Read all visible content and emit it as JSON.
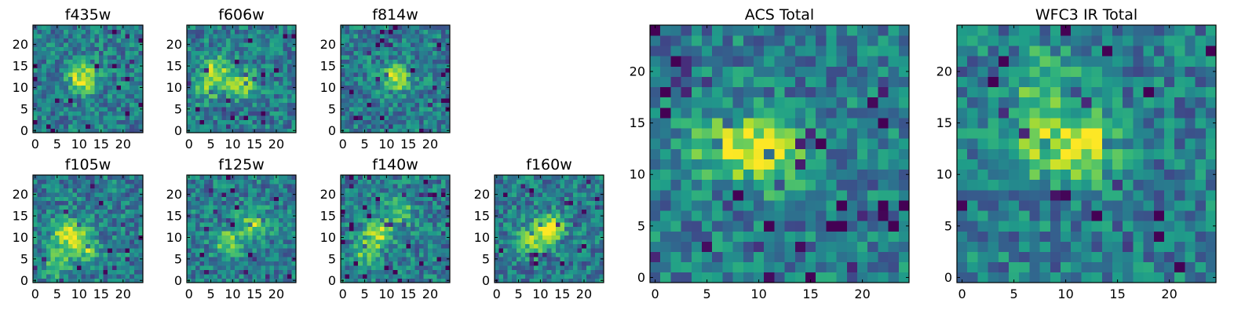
{
  "chart_data": [
    {
      "type": "heatmap",
      "title": "f435w",
      "xticks": [
        "0",
        "5",
        "10",
        "15",
        "20"
      ],
      "yticks": [
        "0",
        "5",
        "10",
        "15",
        "20"
      ],
      "xlim": [
        -0.5,
        24.5
      ],
      "ylim": [
        -0.5,
        24.5
      ],
      "grid": false,
      "colormap": "viridis",
      "bright_blobs": [
        [
          11,
          12,
          0.6
        ]
      ]
    },
    {
      "type": "heatmap",
      "title": "f606w",
      "xticks": [
        "0",
        "5",
        "10",
        "15",
        "20"
      ],
      "yticks": [
        "0",
        "5",
        "10",
        "15",
        "20"
      ],
      "xlim": [
        -0.5,
        24.5
      ],
      "ylim": [
        -0.5,
        24.5
      ],
      "grid": false,
      "colormap": "viridis",
      "bright_blobs": [
        [
          6,
          14,
          0.4
        ],
        [
          12,
          11,
          0.4
        ],
        [
          4,
          10,
          0.3
        ]
      ]
    },
    {
      "type": "heatmap",
      "title": "f814w",
      "xticks": [
        "0",
        "5",
        "10",
        "15",
        "20"
      ],
      "yticks": [
        "0",
        "5",
        "10",
        "15",
        "20"
      ],
      "xlim": [
        -0.5,
        24.5
      ],
      "ylim": [
        -0.5,
        24.5
      ],
      "grid": false,
      "colormap": "viridis",
      "bright_blobs": [
        [
          12,
          12,
          0.45
        ]
      ]
    },
    {
      "type": "heatmap",
      "title": "f105w",
      "xticks": [
        "0",
        "5",
        "10",
        "15",
        "20"
      ],
      "yticks": [
        "0",
        "5",
        "10",
        "15",
        "20"
      ],
      "xlim": [
        -0.5,
        24.5
      ],
      "ylim": [
        -0.5,
        24.5
      ],
      "grid": false,
      "colormap": "viridis",
      "bright_blobs": [
        [
          7,
          11,
          0.55
        ],
        [
          11,
          8,
          0.45
        ],
        [
          5,
          4,
          0.3
        ]
      ]
    },
    {
      "type": "heatmap",
      "title": "f125w",
      "xticks": [
        "0",
        "5",
        "10",
        "15",
        "20"
      ],
      "yticks": [
        "0",
        "5",
        "10",
        "15",
        "20"
      ],
      "xlim": [
        -0.5,
        24.5
      ],
      "ylim": [
        -0.5,
        24.5
      ],
      "grid": false,
      "colormap": "viridis",
      "bright_blobs": [
        [
          15,
          13,
          0.45
        ],
        [
          9,
          9,
          0.4
        ]
      ]
    },
    {
      "type": "heatmap",
      "title": "f140w",
      "xticks": [
        "0",
        "5",
        "10",
        "15",
        "20"
      ],
      "yticks": [
        "0",
        "5",
        "10",
        "15",
        "20"
      ],
      "xlim": [
        -0.5,
        24.5
      ],
      "ylim": [
        -0.5,
        24.5
      ],
      "grid": false,
      "colormap": "viridis",
      "bright_blobs": [
        [
          8,
          11,
          0.5
        ],
        [
          13,
          16,
          0.35
        ],
        [
          5,
          6,
          0.3
        ]
      ]
    },
    {
      "type": "heatmap",
      "title": "f160w",
      "xticks": [
        "0",
        "5",
        "10",
        "15",
        "20"
      ],
      "yticks": [
        "0",
        "5",
        "10",
        "15",
        "20"
      ],
      "xlim": [
        -0.5,
        24.5
      ],
      "ylim": [
        -0.5,
        24.5
      ],
      "grid": false,
      "colormap": "viridis",
      "bright_blobs": [
        [
          12,
          12,
          0.6
        ],
        [
          8,
          9,
          0.35
        ]
      ]
    },
    {
      "type": "heatmap",
      "title": "ACS Total",
      "xticks": [
        "0",
        "5",
        "10",
        "15",
        "20"
      ],
      "yticks": [
        "0",
        "5",
        "10",
        "15",
        "20"
      ],
      "xlim": [
        -0.5,
        24.5
      ],
      "ylim": [
        -0.5,
        24.5
      ],
      "grid": false,
      "colormap": "viridis",
      "bright_blobs": [
        [
          11,
          12,
          0.55
        ],
        [
          6,
          13,
          0.4
        ]
      ]
    },
    {
      "type": "heatmap",
      "title": "WFC3 IR Total",
      "xticks": [
        "0",
        "5",
        "10",
        "15",
        "20"
      ],
      "yticks": [
        "0",
        "5",
        "10",
        "15",
        "20"
      ],
      "xlim": [
        -0.5,
        24.5
      ],
      "ylim": [
        -0.5,
        24.5
      ],
      "grid": false,
      "colormap": "viridis",
      "bright_blobs": [
        [
          12,
          13,
          0.55
        ],
        [
          7,
          13,
          0.35
        ],
        [
          8,
          19,
          0.3
        ]
      ]
    }
  ]
}
